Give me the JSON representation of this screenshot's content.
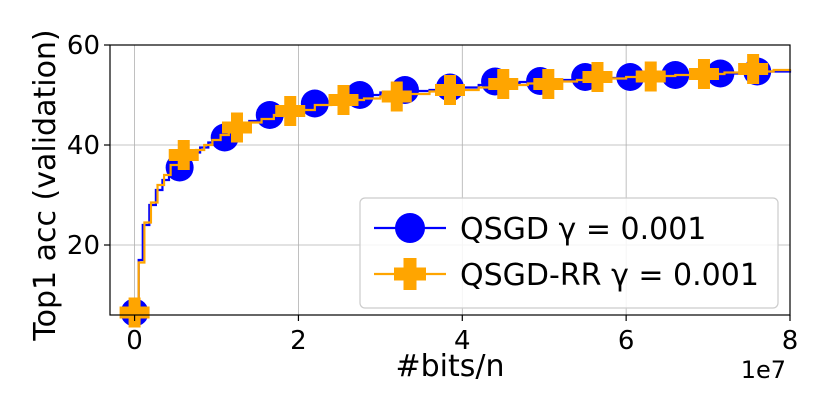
{
  "chart_data": {
    "type": "line",
    "xlabel": "#bits/n",
    "ylabel": "Top1 acc (validation)",
    "x_offset_label": "1e7",
    "xlim": [
      -0.3,
      8.0
    ],
    "ylim": [
      6,
      60
    ],
    "xticks": [
      0,
      2,
      4,
      6,
      8
    ],
    "yticks": [
      20,
      40,
      60
    ],
    "grid": true,
    "legend_position": "lower-right",
    "series": [
      {
        "name": "QSGD γ =  0.001",
        "legend_label": "QSGD",
        "legend_gamma": "γ =  0.001",
        "color": "#0000ff",
        "marker": "circle",
        "step": true,
        "x": [
          0.0,
          0.05,
          0.1,
          0.18,
          0.26,
          0.34,
          0.42,
          0.52,
          0.6,
          0.7,
          0.8,
          0.9,
          1.0,
          1.1,
          1.2,
          1.3,
          1.4,
          1.55,
          1.7,
          1.85,
          2.0,
          2.2,
          2.4,
          2.6,
          2.75,
          3.0,
          3.3,
          3.6,
          3.9,
          4.2,
          4.4,
          4.7,
          4.95,
          5.2,
          5.45,
          5.7,
          6.0,
          6.3,
          6.6,
          6.9,
          7.1,
          7.4,
          7.6,
          8.0
        ],
        "y": [
          6.5,
          17,
          24,
          28,
          31,
          33,
          35,
          36,
          37.5,
          38.5,
          39.5,
          40.5,
          41.5,
          42.5,
          43,
          44,
          44.8,
          45.5,
          46,
          46.8,
          47.3,
          48.3,
          49,
          49.5,
          50,
          50.5,
          50.8,
          51,
          51.5,
          52,
          52.4,
          52.6,
          52.8,
          53,
          53.2,
          53.4,
          53.6,
          53.8,
          54,
          54.2,
          54.3,
          54.5,
          54.7,
          55
        ],
        "marker_x": [
          0.0,
          0.55,
          1.1,
          1.65,
          2.2,
          2.75,
          3.3,
          3.85,
          4.4,
          4.95,
          5.5,
          6.05,
          6.6,
          7.15,
          7.6
        ],
        "marker_y": [
          6.5,
          35.5,
          41.5,
          46,
          48.3,
          50,
          51,
          51.5,
          52.7,
          52.8,
          53.6,
          53.6,
          54,
          54.3,
          54.7
        ]
      },
      {
        "name": "QSGD-RR γ =  0.001",
        "legend_label": "QSGD-RR",
        "legend_gamma": "γ =  0.001",
        "color": "#ffa500",
        "marker": "plus",
        "step": true,
        "x": [
          0.0,
          0.05,
          0.12,
          0.2,
          0.28,
          0.36,
          0.44,
          0.55,
          0.65,
          0.75,
          0.85,
          0.95,
          1.05,
          1.15,
          1.25,
          1.4,
          1.55,
          1.7,
          1.85,
          2.0,
          2.2,
          2.4,
          2.6,
          2.8,
          3.0,
          3.3,
          3.6,
          3.9,
          4.2,
          4.5,
          4.8,
          5.1,
          5.4,
          5.7,
          6.0,
          6.3,
          6.6,
          6.9,
          7.2,
          7.5,
          7.8,
          8.0
        ],
        "y": [
          6.5,
          16.5,
          24.5,
          28.5,
          32,
          34,
          36,
          37,
          38,
          39,
          40,
          41,
          42,
          43,
          44,
          44.5,
          45.2,
          46,
          46.5,
          47,
          48,
          48.5,
          49,
          49.3,
          49.7,
          50.2,
          50.7,
          51,
          51.5,
          52,
          52.3,
          52.7,
          53,
          53.3,
          53.6,
          53.8,
          54,
          54.2,
          54.5,
          54.7,
          55,
          55.2
        ],
        "marker_x": [
          0.0,
          0.6,
          1.25,
          1.9,
          2.55,
          3.2,
          3.85,
          4.5,
          5.05,
          5.65,
          6.3,
          6.95,
          7.55
        ],
        "marker_y": [
          6.5,
          38,
          43.5,
          46.8,
          49,
          49.7,
          51,
          52.2,
          52.2,
          53.6,
          53.7,
          54.2,
          55.2
        ]
      }
    ]
  }
}
